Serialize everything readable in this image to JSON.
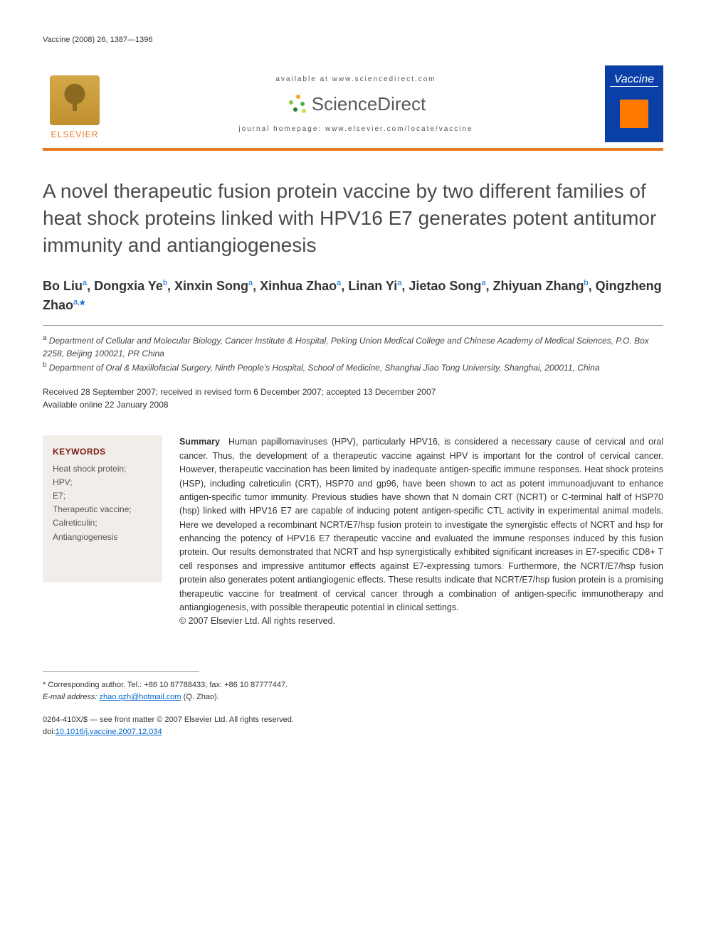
{
  "running_head": "Vaccine (2008) 26, 1387—1396",
  "header": {
    "available_line": "available at www.sciencedirect.com",
    "sd_brand": "ScienceDirect",
    "homepage_line": "journal homepage: www.elsevier.com/locate/vaccine",
    "elsevier_label": "ELSEVIER",
    "cover_label": "Vaccine",
    "accent_color": "#e87722",
    "cover_bg": "#0a3fa8"
  },
  "title": "A novel therapeutic fusion protein vaccine by two different families of heat shock proteins linked with HPV16 E7 generates potent antitumor immunity and antiangiogenesis",
  "authors_html": "Bo Liu<sup>a</sup>, Dongxia Ye<sup>b</sup>, Xinxin Song<sup>a</sup>, Xinhua Zhao<sup>a</sup>, Linan Yi<sup>a</sup>, Jietao Song<sup>a</sup>, Zhiyuan Zhang<sup>b</sup>, Qingzheng Zhao<sup>a,</sup><span class=\"star\">*</span>",
  "affiliations": {
    "a": "Department of Cellular and Molecular Biology, Cancer Institute & Hospital, Peking Union Medical College and Chinese Academy of Medical Sciences, P.O. Box 2258, Beijing 100021, PR China",
    "b": "Department of Oral & Maxillofacial Surgery, Ninth People's Hospital, School of Medicine, Shanghai Jiao Tong University, Shanghai, 200011, China"
  },
  "dates": {
    "line1": "Received 28 September 2007; received in revised form 6 December 2007; accepted 13 December 2007",
    "line2": "Available online 22 January 2008"
  },
  "keywords": {
    "heading": "KEYWORDS",
    "items": [
      "Heat shock protein;",
      "HPV;",
      "E7;",
      "Therapeutic vaccine;",
      "Calreticulin;",
      "Antiangiogenesis"
    ]
  },
  "summary": {
    "label": "Summary",
    "text": "Human papillomaviruses (HPV), particularly HPV16, is considered a necessary cause of cervical and oral cancer. Thus, the development of a therapeutic vaccine against HPV is important for the control of cervical cancer. However, therapeutic vaccination has been limited by inadequate antigen-specific immune responses. Heat shock proteins (HSP), including calreticulin (CRT), HSP70 and gp96, have been shown to act as potent immunoadjuvant to enhance antigen-specific tumor immunity. Previous studies have shown that N domain CRT (NCRT) or C-terminal half of HSP70 (hsp) linked with HPV16 E7 are capable of inducing potent antigen-specific CTL activity in experimental animal models. Here we developed a recombinant NCRT/E7/hsp fusion protein to investigate the synergistic effects of NCRT and hsp for enhancing the potency of HPV16 E7 therapeutic vaccine and evaluated the immune responses induced by this fusion protein. Our results demonstrated that NCRT and hsp synergistically exhibited significant increases in E7-specific CD8+ T cell responses and impressive antitumor effects against E7-expressing tumors. Furthermore, the NCRT/E7/hsp fusion protein also generates potent antiangiogenic effects. These results indicate that NCRT/E7/hsp fusion protein is a promising therapeutic vaccine for treatment of cervical cancer through a combination of antigen-specific immunotherapy and antiangiogenesis, with possible therapeutic potential in clinical settings.",
    "copyright": "© 2007 Elsevier Ltd. All rights reserved."
  },
  "footer": {
    "corr_label": "* Corresponding author. Tel.: +86 10 87788433; fax: +86 10 87777447.",
    "email_label": "E-mail address:",
    "email": "zhao.qzh@hotmail.com",
    "email_paren": "(Q. Zhao).",
    "issn_line": "0264-410X/$ — see front matter © 2007 Elsevier Ltd. All rights reserved.",
    "doi_label": "doi:",
    "doi": "10.1016/j.vaccine.2007.12.034"
  },
  "sd_dot_colors": [
    "#f5a623",
    "#8bc34a",
    "#4caf50",
    "#2e7d32",
    "#cddc39"
  ]
}
